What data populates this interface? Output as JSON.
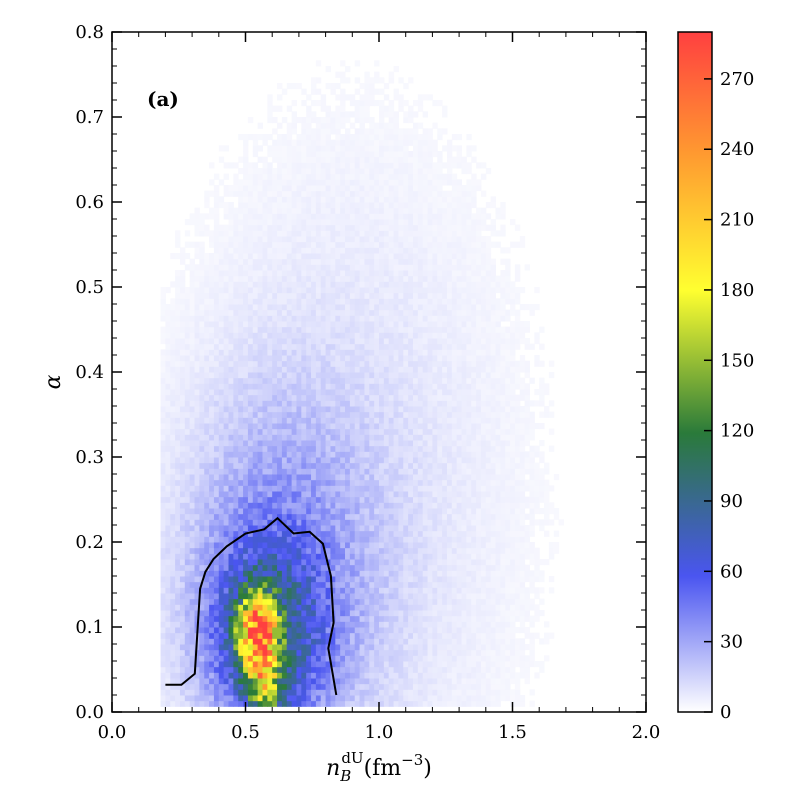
{
  "chart_data": {
    "type": "heatmap",
    "panel_label": "(a)",
    "xlabel": {
      "main": "n",
      "sub": "B",
      "sup": "dU",
      "unit": "(fm",
      "unit_exp": "−3",
      "unit_close": ")"
    },
    "ylabel": "α",
    "xlim": [
      0.0,
      2.0
    ],
    "ylim": [
      0.0,
      0.8
    ],
    "x_ticks": [
      0.0,
      0.5,
      1.0,
      1.5,
      2.0
    ],
    "x_tick_labels": [
      "0.0",
      "0.5",
      "1.0",
      "1.5",
      "2.0"
    ],
    "y_ticks": [
      0.0,
      0.1,
      0.2,
      0.3,
      0.4,
      0.5,
      0.6,
      0.7,
      0.8
    ],
    "y_tick_labels": [
      "0.0",
      "0.1",
      "0.2",
      "0.3",
      "0.4",
      "0.5",
      "0.6",
      "0.7",
      "0.8"
    ],
    "colorbar": {
      "range": [
        0,
        290
      ],
      "ticks": [
        0,
        30,
        60,
        90,
        120,
        150,
        180,
        210,
        240,
        270
      ],
      "tick_labels": [
        "0",
        "30",
        "60",
        "90",
        "120",
        "150",
        "180",
        "210",
        "240",
        "270"
      ],
      "colors": [
        {
          "stop": 0.0,
          "color": "#ffffff"
        },
        {
          "stop": 0.2,
          "color": "#4a55f0"
        },
        {
          "stop": 0.41,
          "color": "#2a7a3a"
        },
        {
          "stop": 0.62,
          "color": "#ffff30"
        },
        {
          "stop": 0.82,
          "color": "#ff9a30"
        },
        {
          "stop": 1.0,
          "color": "#ff4040"
        }
      ]
    },
    "density_peak": {
      "x": 0.54,
      "y": 0.095,
      "value": 290
    },
    "contour": [
      [
        0.2,
        0.032
      ],
      [
        0.26,
        0.032
      ],
      [
        0.31,
        0.045
      ],
      [
        0.33,
        0.145
      ],
      [
        0.35,
        0.165
      ],
      [
        0.38,
        0.18
      ],
      [
        0.43,
        0.195
      ],
      [
        0.5,
        0.21
      ],
      [
        0.57,
        0.215
      ],
      [
        0.62,
        0.228
      ],
      [
        0.68,
        0.21
      ],
      [
        0.74,
        0.212
      ],
      [
        0.79,
        0.198
      ],
      [
        0.82,
        0.16
      ],
      [
        0.83,
        0.105
      ],
      [
        0.81,
        0.075
      ],
      [
        0.84,
        0.02
      ]
    ]
  }
}
